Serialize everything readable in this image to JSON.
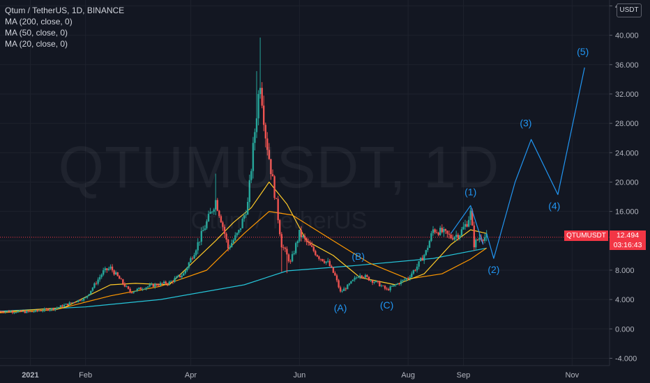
{
  "header": {
    "symbol_line": "Qtum / TetherUS, 1D, BINANCE",
    "indicators": [
      "MA (200, close, 0)",
      "MA (50, close, 0)",
      "MA (20, close, 0)"
    ],
    "unit_label": "USDT"
  },
  "watermark": {
    "symbol": "QTUMUSDT, 1D",
    "name": "Qtum / TetherUS"
  },
  "price_marker": {
    "tag": "QTUMUSDT",
    "price": "12.494",
    "countdown": "03:16:43"
  },
  "chart_data": {
    "type": "candlestick",
    "x_range": [
      "2020-12-15",
      "2021-11-22"
    ],
    "x_ticks": [
      {
        "label": "2021",
        "date": "2021-01-01",
        "bold": true
      },
      {
        "label": "Feb",
        "date": "2021-02-01"
      },
      {
        "label": "Apr",
        "date": "2021-04-01"
      },
      {
        "label": "Jun",
        "date": "2021-06-01"
      },
      {
        "label": "Aug",
        "date": "2021-08-01"
      },
      {
        "label": "Sep",
        "date": "2021-09-01"
      },
      {
        "label": "Nov",
        "date": "2021-11-01"
      }
    ],
    "y_range": [
      -5.0,
      44.8
    ],
    "y_ticks": [
      "-4.000",
      "0.000",
      "4.000",
      "8.000",
      "12.000",
      "16.000",
      "20.000",
      "24.000",
      "28.000",
      "32.000",
      "36.000",
      "40.000",
      "44.000"
    ],
    "last_price": 12.494,
    "colors": {
      "up": "#26a69a",
      "down": "#ef5350",
      "ma200": "#26c6da",
      "ma50": "#ff9800",
      "ma20": "#ffca28",
      "wave": "#2196f3",
      "price_line": "#f23645"
    },
    "price_path": [
      [
        "2020-12-15",
        2.4
      ],
      [
        "2021-01-01",
        2.3
      ],
      [
        "2021-01-15",
        2.8
      ],
      [
        "2021-01-22",
        3.4
      ],
      [
        "2021-02-01",
        4.2
      ],
      [
        "2021-02-06",
        6.0
      ],
      [
        "2021-02-11",
        7.8
      ],
      [
        "2021-02-15",
        8.3
      ],
      [
        "2021-02-20",
        6.8
      ],
      [
        "2021-02-26",
        5.0
      ],
      [
        "2021-03-05",
        5.6
      ],
      [
        "2021-03-12",
        6.0
      ],
      [
        "2021-03-20",
        6.3
      ],
      [
        "2021-03-28",
        7.5
      ],
      [
        "2021-04-03",
        10.5
      ],
      [
        "2021-04-10",
        14.5
      ],
      [
        "2021-04-15",
        17.5
      ],
      [
        "2021-04-18",
        15.0
      ],
      [
        "2021-04-22",
        11.0
      ],
      [
        "2021-04-28",
        13.2
      ],
      [
        "2021-05-03",
        17.0
      ],
      [
        "2021-05-08",
        29.5
      ],
      [
        "2021-05-10",
        34.0
      ],
      [
        "2021-05-13",
        26.5
      ],
      [
        "2021-05-19",
        17.0
      ],
      [
        "2021-05-22",
        11.5
      ],
      [
        "2021-05-27",
        9.0
      ],
      [
        "2021-06-01",
        13.0
      ],
      [
        "2021-06-07",
        11.2
      ],
      [
        "2021-06-12",
        9.8
      ],
      [
        "2021-06-17",
        9.0
      ],
      [
        "2021-06-21",
        7.2
      ],
      [
        "2021-06-24",
        5.0
      ],
      [
        "2021-06-28",
        5.8
      ],
      [
        "2021-07-05",
        7.5
      ],
      [
        "2021-07-10",
        6.8
      ],
      [
        "2021-07-15",
        6.2
      ],
      [
        "2021-07-20",
        5.3
      ],
      [
        "2021-07-25",
        6.0
      ],
      [
        "2021-08-01",
        7.0
      ],
      [
        "2021-08-06",
        8.5
      ],
      [
        "2021-08-11",
        10.5
      ],
      [
        "2021-08-15",
        13.5
      ],
      [
        "2021-08-20",
        13.2
      ],
      [
        "2021-08-25",
        12.5
      ],
      [
        "2021-08-30",
        13.0
      ],
      [
        "2021-09-03",
        14.5
      ],
      [
        "2021-09-05",
        15.8
      ],
      [
        "2021-09-07",
        11.5
      ],
      [
        "2021-09-10",
        12.5
      ],
      [
        "2021-09-14",
        12.494
      ]
    ],
    "candle_count": 274,
    "series": [
      {
        "name": "MA (200, close, 0)",
        "points": [
          [
            "2020-12-15",
            2.4
          ],
          [
            "2021-02-01",
            3.0
          ],
          [
            "2021-03-15",
            4.0
          ],
          [
            "2021-05-01",
            6.0
          ],
          [
            "2021-05-25",
            7.9
          ],
          [
            "2021-07-01",
            8.6
          ],
          [
            "2021-08-15",
            9.6
          ],
          [
            "2021-09-14",
            11.0
          ]
        ]
      },
      {
        "name": "MA (50, close, 0)",
        "points": [
          [
            "2020-12-15",
            2.2
          ],
          [
            "2021-01-15",
            2.6
          ],
          [
            "2021-02-15",
            4.5
          ],
          [
            "2021-03-15",
            5.8
          ],
          [
            "2021-04-10",
            8.0
          ],
          [
            "2021-05-01",
            13.0
          ],
          [
            "2021-05-15",
            16.0
          ],
          [
            "2021-05-28",
            15.5
          ],
          [
            "2021-06-20",
            12.0
          ],
          [
            "2021-07-10",
            9.0
          ],
          [
            "2021-08-01",
            6.8
          ],
          [
            "2021-08-20",
            7.5
          ],
          [
            "2021-09-05",
            9.5
          ],
          [
            "2021-09-14",
            11.0
          ]
        ]
      },
      {
        "name": "MA (20, close, 0)",
        "points": [
          [
            "2020-12-15",
            2.3
          ],
          [
            "2021-01-20",
            2.9
          ],
          [
            "2021-02-15",
            6.0
          ],
          [
            "2021-03-01",
            6.2
          ],
          [
            "2021-03-20",
            6.0
          ],
          [
            "2021-04-15",
            12.0
          ],
          [
            "2021-04-25",
            14.5
          ],
          [
            "2021-05-05",
            16.5
          ],
          [
            "2021-05-15",
            20.0
          ],
          [
            "2021-05-25",
            17.0
          ],
          [
            "2021-06-05",
            12.0
          ],
          [
            "2021-06-20",
            10.0
          ],
          [
            "2021-07-05",
            7.0
          ],
          [
            "2021-07-25",
            6.0
          ],
          [
            "2021-08-10",
            7.5
          ],
          [
            "2021-08-25",
            11.5
          ],
          [
            "2021-09-05",
            13.5
          ],
          [
            "2021-09-14",
            13.0
          ]
        ]
      }
    ],
    "annotations": [
      {
        "label": "(A)",
        "date": "2021-06-24",
        "value": 2.4
      },
      {
        "label": "(B)",
        "date": "2021-07-04",
        "value": 9.4
      },
      {
        "label": "(C)",
        "date": "2021-07-20",
        "value": 2.8
      },
      {
        "label": "(1)",
        "date": "2021-09-05",
        "value": 18.2
      },
      {
        "label": "(2)",
        "date": "2021-09-18",
        "value": 7.6
      },
      {
        "label": "(3)",
        "date": "2021-10-06",
        "value": 27.6
      },
      {
        "label": "(4)",
        "date": "2021-10-22",
        "value": 16.3
      },
      {
        "label": "(5)",
        "date": "2021-11-07",
        "value": 37.3
      }
    ],
    "wave_path": [
      [
        "2021-09-14",
        13.0
      ],
      [
        "2021-09-18",
        9.6
      ],
      [
        "2021-09-30",
        20.0
      ],
      [
        "2021-10-09",
        25.8
      ],
      [
        "2021-10-24",
        18.3
      ],
      [
        "2021-11-08",
        35.6
      ]
    ],
    "wave_1_path": [
      [
        "2021-08-25",
        13.0
      ],
      [
        "2021-09-05",
        16.8
      ],
      [
        "2021-09-12",
        11.5
      ]
    ]
  }
}
